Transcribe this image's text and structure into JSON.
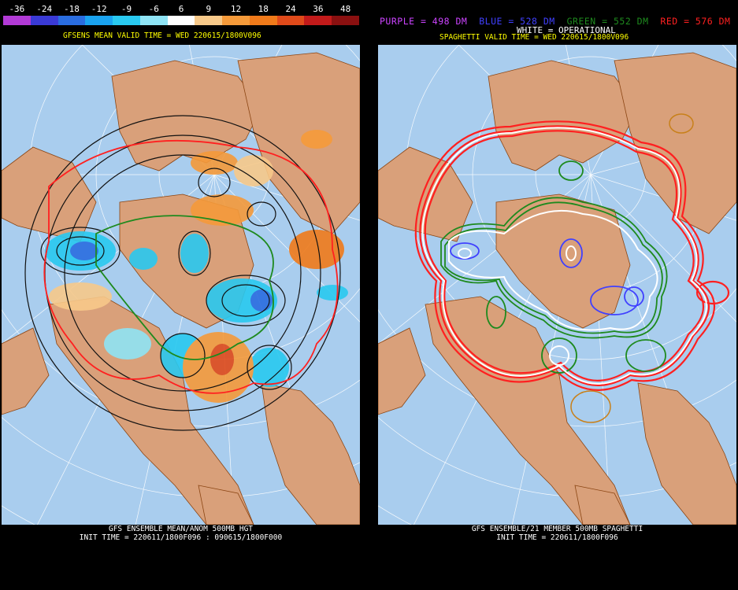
{
  "left": {
    "colorbar": {
      "labels": [
        "-36",
        "-24",
        "-18",
        "-12",
        "-9",
        "-6",
        "6",
        "9",
        "12",
        "18",
        "24",
        "36",
        "48"
      ],
      "colors": [
        "#b23ad6",
        "#3a3ad6",
        "#2a6de0",
        "#1aa3f0",
        "#29c9f0",
        "#8fe4f5",
        "#ffffff",
        "#f7c98a",
        "#f59a3a",
        "#f07a1a",
        "#e04a1a",
        "#c21a1a",
        "#8a1010"
      ]
    },
    "title": "GFSENS MEAN VALID TIME = WED 220615/1800V096",
    "footer_line1": "GFS ENSEMBLE MEAN/ANOM 500MB HGT",
    "footer_line2": "INIT TIME = 220611/1800F096 : 090615/1800F000"
  },
  "right": {
    "legend": {
      "purple": "PURPLE = 498 DM",
      "blue": "BLUE = 528 DM",
      "green": "GREEN = 552 DM",
      "red": "RED = 576 DM",
      "white": "WHITE = OPERATIONAL"
    },
    "title": "SPAGHETTI VALID TIME = WED 220615/1800V096",
    "footer_line1": "GFS ENSEMBLE/21 MEMBER 500MB SPAGHETTI",
    "footer_line2": "INIT TIME = 220611/1800F096"
  },
  "colors": {
    "ocean": "#a9cdee",
    "land": "#d9a07a",
    "border": "#8b4513",
    "purple": "#cc44ff",
    "blue": "#4040ff",
    "green": "#1e8a1e",
    "red": "#ff2020",
    "white": "#ffffff",
    "title_yellow": "#ffff00"
  }
}
